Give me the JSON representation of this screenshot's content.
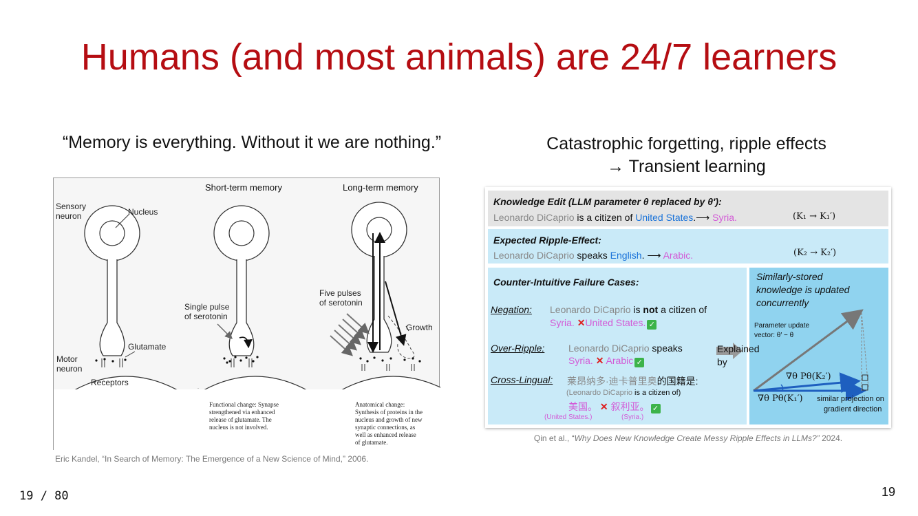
{
  "slide": {
    "title": "Humans (and most animals) are 24/7 learners",
    "quote": "“Memory is everything. Without it we are nothing.”",
    "right_heading_line1": "Catastrophic forgetting, ripple effects",
    "right_heading_line2": "→ Transient learning",
    "page_counter": "19 / 80",
    "slide_number": "19"
  },
  "left_figure": {
    "col_short": "Short-term memory",
    "col_long": "Long-term memory",
    "sensory": "Sensory",
    "neuron1": "neuron",
    "nucleus": "Nucleus",
    "glutamate": "Glutamate",
    "motor": "Motor",
    "neuron2": "neuron",
    "receptors": "Receptors",
    "single_pulse": "Single pulse",
    "of_serotonin_1": "of serotonin",
    "five_pulses": "Five pulses",
    "of_serotonin_2": "of serotonin",
    "growth": "Growth",
    "functional_note": [
      "Functional change: Synapse",
      "strengthened via enhanced",
      "release of glutamate. The",
      "nucleus is not involved."
    ],
    "anatomical_note": [
      "Anatomical change:",
      "Synthesis of proteins in the",
      "nucleus and growth of new",
      "synaptic connections, as",
      "well as enhanced release",
      "of glutamate."
    ],
    "citation": "Eric Kandel, “In Search of Memory: The Emergence of a New Science of Mind,” 2006."
  },
  "right_figure": {
    "edit_title": "Knowledge Edit (LLM parameter θ replaced by θ′):",
    "edit_subject": "Leonardo DiCaprio",
    "edit_mid": " is a citizen of ",
    "edit_old": "United States",
    "edit_new": "Syria.",
    "edit_math": "(K₁ → K₁′)",
    "ripple_title": "Expected Ripple-Effect:",
    "ripple_subject": "Leonardo DiCaprio",
    "ripple_mid": " speaks ",
    "ripple_old": "English",
    "ripple_new": "Arabic.",
    "ripple_math": "(K₂ → K₂′)",
    "fail_title": "Counter-Intuitive Failure Cases:",
    "negation_label": "Negation:",
    "negation_subject": "Leonardo DiCaprio",
    "negation_mid1": " is ",
    "negation_not": "not",
    "negation_mid2": " a citizen of",
    "negation_a": "Syria.",
    "negation_b": "United States.",
    "over_label": "Over-Ripple:",
    "over_subject": "Leonardo DiCaprio",
    "over_mid": " speaks",
    "over_a": "Syria.",
    "over_b": "Arabic",
    "cross_label": "Cross-Lingual:",
    "cross_name_cn": "莱昂纳多·迪卡普里奥",
    "cross_suffix_cn": "的国籍是:",
    "cross_gloss_a": "(Leonardo DiCaprio",
    "cross_gloss_b": " is a citizen of)",
    "cross_a_cn": "美国。",
    "cross_b_cn": "叙利亚。",
    "cross_a_en": "(United States.)",
    "cross_b_en": "(Syria.)",
    "explained": "Explained",
    "by": "by",
    "sim_title": [
      "Similarly-stored",
      "knowledge is updated",
      "concurrently"
    ],
    "param_update": "Parameter update",
    "param_vector": "vector: θ′ − θ",
    "grad_k2": "∇θ Pθ(K₂′)",
    "grad_k1": "∇θ Pθ(K₁′)",
    "similar_proj": "similar projection on",
    "gradient_dir": "gradient direction",
    "citation_prefix": "Qin et al., “",
    "citation_title": "Why Does New Knowledge Create Messy Ripple Effects in LLMs?”",
    "citation_year": " 2024."
  },
  "icons": {
    "cross": "cross-mark-icon",
    "check": "check-mark-icon",
    "arrow": "right-arrow-icon"
  },
  "colors": {
    "title": "#b50d12",
    "blue": "#1a73d9",
    "pink": "#d35ad6",
    "panel_light": "#c9eaf8",
    "panel_dark": "#90d3ef"
  }
}
